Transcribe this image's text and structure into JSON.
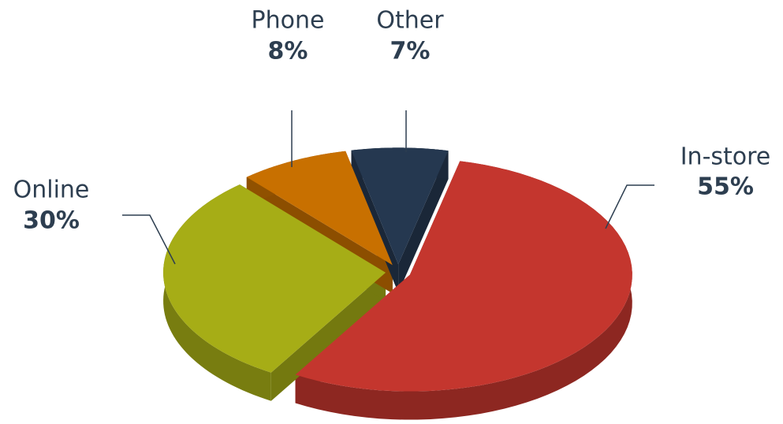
{
  "chart_data": {
    "type": "pie",
    "categories": [
      "In-store",
      "Online",
      "Phone",
      "Other"
    ],
    "values": [
      55,
      30,
      8,
      7
    ],
    "value_labels": [
      "55%",
      "30%",
      "8%",
      "7%"
    ],
    "colors": [
      "#c4362e",
      "#a6ad16",
      "#c87000",
      "#253850"
    ]
  }
}
